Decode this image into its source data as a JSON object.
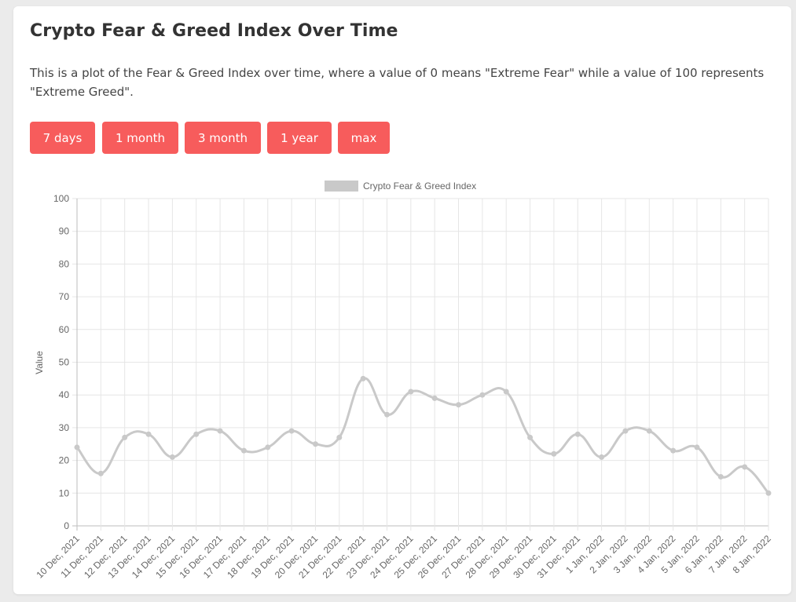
{
  "page": {
    "title": "Crypto Fear & Greed Index Over Time",
    "description": "This is a plot of the Fear & Greed Index over time, where a value of 0 means \"Extreme Fear\" while a value of 100 represents \"Extreme Greed\"."
  },
  "range_buttons": [
    {
      "label": "7 days"
    },
    {
      "label": "1 month"
    },
    {
      "label": "3 month"
    },
    {
      "label": "1 year"
    },
    {
      "label": "max"
    }
  ],
  "colors": {
    "button_bg": "#f75c5c",
    "series_line": "#c9c9c9",
    "grid": "#e6e6e6"
  },
  "chart_data": {
    "type": "line",
    "xlabel": "",
    "ylabel": "Value",
    "ylim": [
      0,
      100
    ],
    "yticks": [
      0,
      10,
      20,
      30,
      40,
      50,
      60,
      70,
      80,
      90,
      100
    ],
    "grid": true,
    "legend": "top-center",
    "categories": [
      "10 Dec, 2021",
      "11 Dec, 2021",
      "12 Dec, 2021",
      "13 Dec, 2021",
      "14 Dec, 2021",
      "15 Dec, 2021",
      "16 Dec, 2021",
      "17 Dec, 2021",
      "18 Dec, 2021",
      "19 Dec, 2021",
      "20 Dec, 2021",
      "21 Dec, 2021",
      "22 Dec, 2021",
      "23 Dec, 2021",
      "24 Dec, 2021",
      "25 Dec, 2021",
      "26 Dec, 2021",
      "27 Dec, 2021",
      "28 Dec, 2021",
      "29 Dec, 2021",
      "30 Dec, 2021",
      "31 Dec, 2021",
      "1 Jan, 2022",
      "2 Jan, 2022",
      "3 Jan, 2022",
      "4 Jan, 2022",
      "5 Jan, 2022",
      "6 Jan, 2022",
      "7 Jan, 2022",
      "8 Jan, 2022"
    ],
    "series": [
      {
        "name": "Crypto Fear & Greed Index",
        "values": [
          24,
          16,
          27,
          28,
          21,
          28,
          29,
          23,
          24,
          29,
          25,
          27,
          45,
          34,
          41,
          39,
          37,
          40,
          41,
          27,
          22,
          28,
          21,
          29,
          29,
          23,
          24,
          15,
          18,
          10
        ]
      }
    ]
  }
}
